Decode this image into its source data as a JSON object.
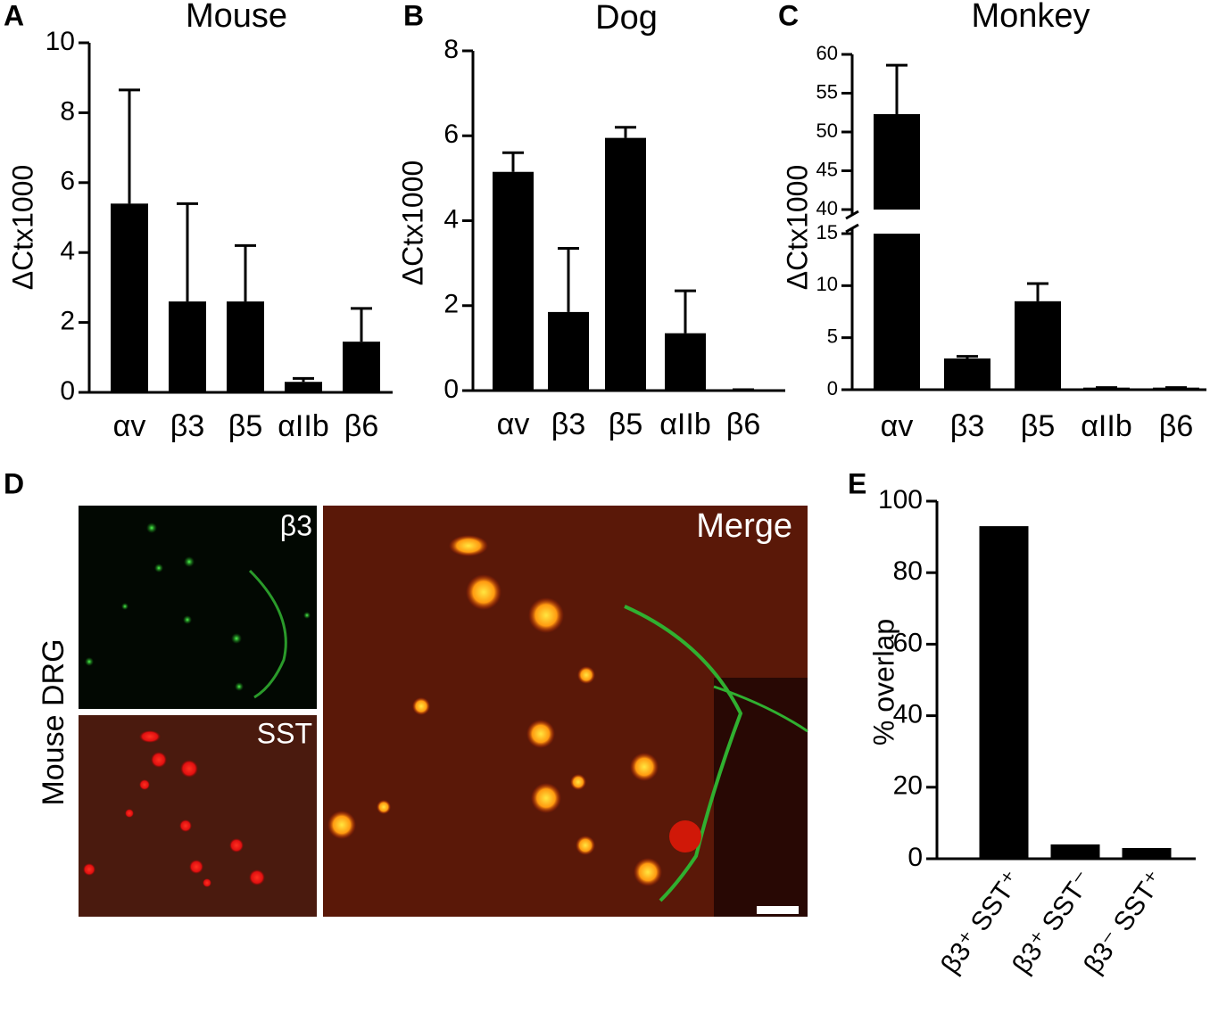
{
  "chart_data": [
    {
      "type": "bar",
      "panel": "A",
      "title": "Mouse",
      "y_label": "ΔCtx1000",
      "categories": [
        "αv",
        "β3",
        "β5",
        "αIIb",
        "β6"
      ],
      "values": [
        5.4,
        2.6,
        2.6,
        0.3,
        1.45
      ],
      "errors": [
        3.25,
        2.8,
        1.6,
        0.1,
        0.95
      ],
      "color": "#000000",
      "ylim": [
        0,
        10
      ],
      "yticks": [
        0,
        2,
        4,
        6,
        8,
        10
      ]
    },
    {
      "type": "bar",
      "panel": "B",
      "title": "Dog",
      "y_label": "ΔCtx1000",
      "categories": [
        "αv",
        "β3",
        "β5",
        "αIIb",
        "β6"
      ],
      "values": [
        5.15,
        1.85,
        5.95,
        1.35,
        0.02
      ],
      "errors": [
        0.45,
        1.5,
        0.25,
        1.0,
        0
      ],
      "color": "#000000",
      "ylim": [
        0,
        8
      ],
      "yticks": [
        0,
        2,
        4,
        6,
        8
      ]
    },
    {
      "type": "bar",
      "panel": "C",
      "title": "Monkey",
      "y_label": "ΔCtx1000",
      "categories": [
        "αv",
        "β3",
        "β5",
        "αIIb",
        "β6"
      ],
      "values": [
        52.3,
        3.0,
        8.5,
        0.2,
        0.2
      ],
      "errors": [
        6.3,
        0.2,
        1.7,
        0,
        0
      ],
      "color": "#000000",
      "ylim": [
        0,
        60
      ],
      "ybreak": [
        15,
        40
      ],
      "yticks": [
        0,
        5,
        10,
        15,
        40,
        45,
        50,
        55,
        60
      ]
    },
    {
      "type": "bar",
      "panel": "E",
      "y_label": "% overlap",
      "categories": [
        "β3⁺ SST⁺",
        "β3⁺ SST⁻",
        "β3⁻ SST⁺"
      ],
      "values": [
        93,
        4,
        3
      ],
      "color": "#000000",
      "ylim": [
        0,
        100
      ],
      "yticks": [
        0,
        20,
        40,
        60,
        80,
        100
      ]
    }
  ],
  "panel_d": {
    "panel": "D",
    "row_label": "Mouse DRG",
    "images": [
      "β3",
      "SST",
      "Merge"
    ]
  }
}
